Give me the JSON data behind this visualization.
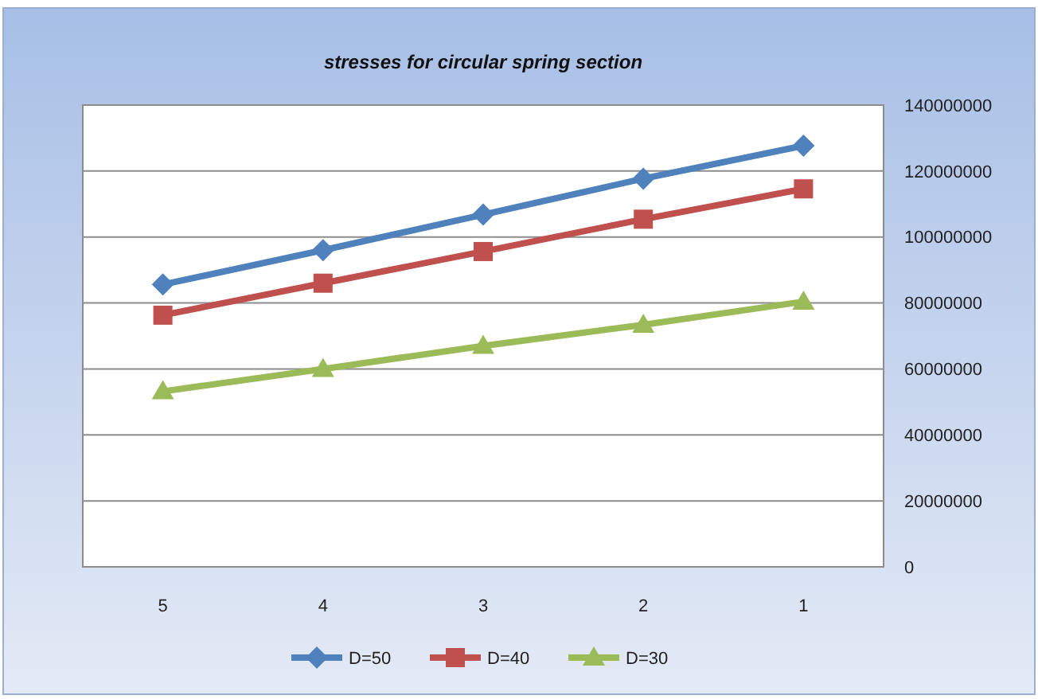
{
  "chart_data": {
    "type": "line",
    "title": "stresses for circular spring section",
    "categories": [
      "5",
      "4",
      "3",
      "2",
      "1"
    ],
    "series": [
      {
        "name": "D=50",
        "color": "#4f81bd",
        "marker": "diamond",
        "values": [
          85600000,
          96000000,
          106800000,
          117700000,
          127700000
        ]
      },
      {
        "name": "D=40",
        "color": "#c0504d",
        "marker": "square",
        "values": [
          76300000,
          86000000,
          95600000,
          105400000,
          114600000
        ]
      },
      {
        "name": "D=30",
        "color": "#9bbb59",
        "marker": "triangle",
        "values": [
          53200000,
          60000000,
          67000000,
          73400000,
          80400000
        ]
      }
    ],
    "ylim": [
      0,
      140000000
    ],
    "yticks": [
      0,
      20000000,
      40000000,
      60000000,
      80000000,
      100000000,
      120000000,
      140000000
    ],
    "grid": "y",
    "legend": "bottom"
  }
}
